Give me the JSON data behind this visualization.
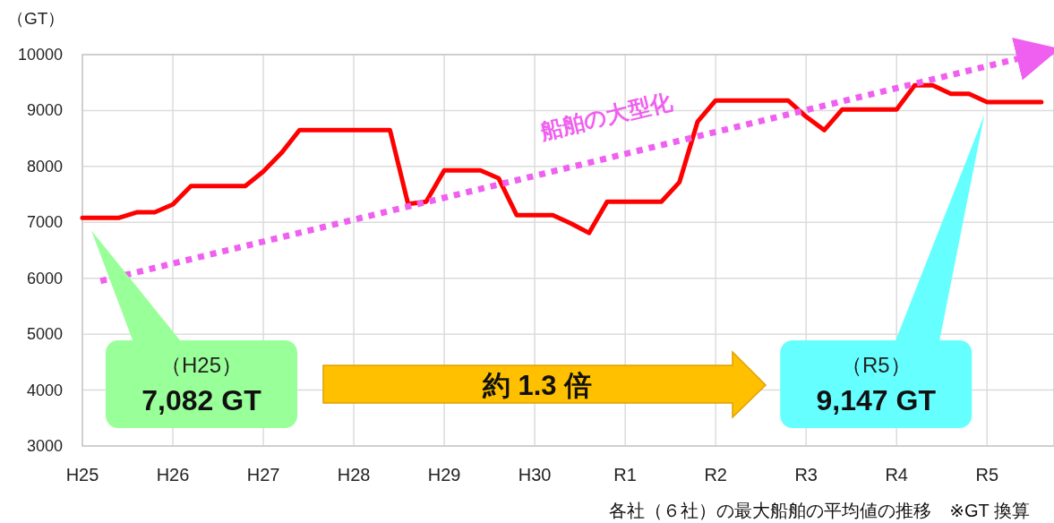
{
  "chart_data": {
    "type": "line",
    "ylabel": "（GT）",
    "categories": [
      "H25",
      null,
      null,
      null,
      null,
      "H26",
      null,
      null,
      null,
      null,
      "H27",
      null,
      null,
      null,
      null,
      "H28",
      null,
      null,
      null,
      null,
      "H29",
      null,
      null,
      null,
      null,
      "H30",
      null,
      null,
      null,
      null,
      "R1",
      null,
      null,
      null,
      null,
      "R2",
      null,
      null,
      null,
      null,
      "R3",
      null,
      null,
      null,
      null,
      "R4",
      null,
      null,
      null,
      null,
      "R5",
      null,
      null,
      null
    ],
    "ylim": [
      3000,
      10000
    ],
    "yticks": [
      3000,
      4000,
      5000,
      6000,
      7000,
      8000,
      9000,
      10000
    ],
    "grid": true,
    "series": [
      {
        "color": "#ff0000",
        "values": [
          7080,
          7080,
          7080,
          7180,
          7180,
          7320,
          7650,
          7650,
          7650,
          7650,
          7910,
          8240,
          8650,
          8650,
          8650,
          8650,
          8650,
          8650,
          7330,
          7370,
          7930,
          7930,
          7930,
          7790,
          7130,
          7130,
          7130,
          6980,
          6810,
          7370,
          7370,
          7370,
          7370,
          7720,
          8800,
          9180,
          9180,
          9180,
          9180,
          9180,
          8890,
          8650,
          9020,
          9020,
          9020,
          9020,
          9450,
          9450,
          9300,
          9300,
          9150,
          9150,
          9150,
          9150
        ]
      },
      {
        "name": "船舶の大型化",
        "color": "#f060f0",
        "line_style": "dotted",
        "values": [
          null,
          5950,
          null,
          null,
          null,
          null,
          null,
          null,
          null,
          null,
          null,
          null,
          null,
          null,
          null,
          null,
          null,
          null,
          null,
          null,
          null,
          null,
          null,
          null,
          null,
          null,
          null,
          null,
          null,
          null,
          null,
          null,
          null,
          null,
          null,
          null,
          null,
          null,
          null,
          null,
          null,
          null,
          null,
          null,
          null,
          null,
          null,
          null,
          null,
          null,
          null,
          null,
          9950,
          null
        ]
      }
    ],
    "annotations": [
      "（H25）\n7,082 GT",
      "約 1.3 倍",
      "（R5）\n9,147 GT",
      "各社（６社）の最大船舶の平均値の推移　※GT 換算"
    ]
  }
}
